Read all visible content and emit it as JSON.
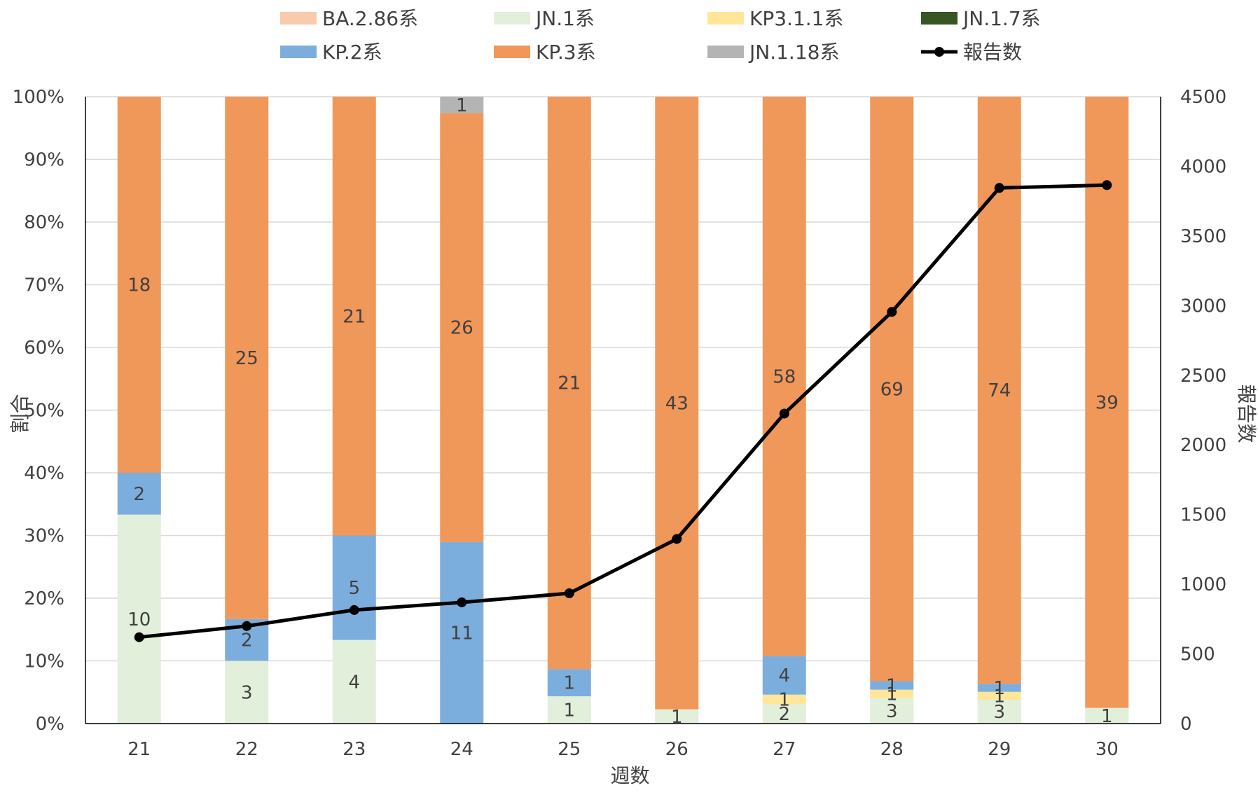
{
  "chart_data": {
    "type": "bar",
    "stacked": true,
    "percent_stacked": true,
    "title": "",
    "xlabel": "週数",
    "ylabel": "割合",
    "y2label": "報告数",
    "categories": [
      "21",
      "22",
      "23",
      "24",
      "25",
      "26",
      "27",
      "28",
      "29",
      "30"
    ],
    "ylim": [
      0,
      100
    ],
    "y_ticks": [
      "0%",
      "10%",
      "20%",
      "30%",
      "40%",
      "50%",
      "60%",
      "70%",
      "80%",
      "90%",
      "100%"
    ],
    "y2lim": [
      0,
      4500
    ],
    "y2_ticks": [
      "0",
      "500",
      "1000",
      "1500",
      "2000",
      "2500",
      "3000",
      "3500",
      "4000",
      "4500"
    ],
    "grid": true,
    "legend_position": "top",
    "series": [
      {
        "name": "BA.2.86系",
        "color": "#F8CBAD",
        "values": [
          0,
          0,
          0,
          0,
          0,
          0,
          0,
          0,
          0,
          0
        ]
      },
      {
        "name": "JN.1系",
        "color": "#E2EFDA",
        "values": [
          10,
          3,
          4,
          0,
          1,
          1,
          2,
          3,
          3,
          1
        ]
      },
      {
        "name": "KP3.1.1系",
        "color": "#FFE699",
        "values": [
          0,
          0,
          0,
          0,
          0,
          0,
          1,
          1,
          1,
          0
        ]
      },
      {
        "name": "JN.1.7系",
        "color": "#375623",
        "values": [
          0,
          0,
          0,
          0,
          0,
          0,
          0,
          0,
          0,
          0
        ]
      },
      {
        "name": "KP.2系",
        "color": "#7CAEDD",
        "values": [
          2,
          2,
          5,
          11,
          1,
          0,
          4,
          1,
          1,
          0
        ]
      },
      {
        "name": "KP.3系",
        "color": "#F0975A",
        "values": [
          18,
          25,
          21,
          26,
          21,
          43,
          58,
          69,
          74,
          39
        ]
      },
      {
        "name": "JN.1.18系",
        "color": "#B4B4B4",
        "values": [
          0,
          0,
          0,
          1,
          0,
          0,
          0,
          0,
          0,
          0
        ]
      }
    ],
    "line_series": {
      "name": "報告数",
      "color": "#000000",
      "values": [
        620,
        700,
        815,
        870,
        935,
        1325,
        2225,
        2955,
        3845,
        3865
      ]
    },
    "legend_order": [
      "BA.2.86系",
      "JN.1系",
      "KP3.1.1系",
      "JN.1.7系",
      "KP.2系",
      "KP.3系",
      "JN.1.18系",
      "報告数"
    ]
  }
}
